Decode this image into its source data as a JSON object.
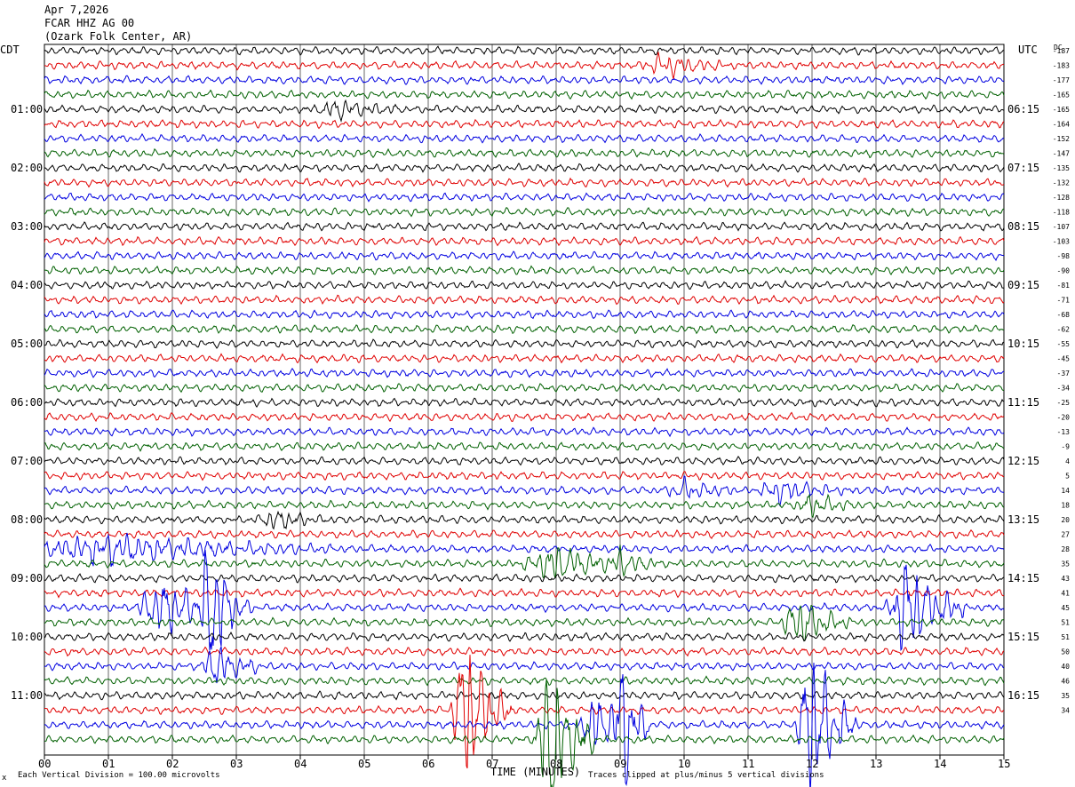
{
  "header": {
    "date": "Apr 7,2026",
    "station": "FCAR HHZ AG 00",
    "location": "(Ozark Folk Center, AR)"
  },
  "left_axis_title": "CDT",
  "right_axis_title": "UTC",
  "dc_title": "DC",
  "footer": {
    "xlabel": "TIME (MINUTES)",
    "scale_note": "Each Vertical Division =  100.00 microvolts",
    "clip_note": "Traces clipped at plus/minus 5 vertical divisions",
    "corner_mark": "x"
  },
  "colors": {
    "trace_cycle": [
      "#000000",
      "#e00000",
      "#0000e0",
      "#006000"
    ],
    "grid": "#000000"
  },
  "chart_data": {
    "type": "line",
    "title": "FCAR HHZ AG 00",
    "xlabel": "TIME (MINUTES)",
    "x_ticks": [
      "00",
      "01",
      "02",
      "03",
      "04",
      "05",
      "06",
      "07",
      "08",
      "09",
      "10",
      "11",
      "12",
      "13",
      "14",
      "15"
    ],
    "xlim": [
      0,
      15
    ],
    "rows": 48,
    "minutes_per_row": 15,
    "left_hour_labels": [
      {
        "row": 4,
        "label": "01:00"
      },
      {
        "row": 8,
        "label": "02:00"
      },
      {
        "row": 12,
        "label": "03:00"
      },
      {
        "row": 16,
        "label": "04:00"
      },
      {
        "row": 20,
        "label": "05:00"
      },
      {
        "row": 24,
        "label": "06:00"
      },
      {
        "row": 28,
        "label": "07:00"
      },
      {
        "row": 32,
        "label": "08:00"
      },
      {
        "row": 36,
        "label": "09:00"
      },
      {
        "row": 40,
        "label": "10:00"
      },
      {
        "row": 44,
        "label": "11:00"
      }
    ],
    "right_hour_labels": [
      {
        "row": 4,
        "label": "06:15"
      },
      {
        "row": 8,
        "label": "07:15"
      },
      {
        "row": 12,
        "label": "08:15"
      },
      {
        "row": 16,
        "label": "09:15"
      },
      {
        "row": 20,
        "label": "10:15"
      },
      {
        "row": 24,
        "label": "11:15"
      },
      {
        "row": 28,
        "label": "12:15"
      },
      {
        "row": 32,
        "label": "13:15"
      },
      {
        "row": 36,
        "label": "14:15"
      },
      {
        "row": 40,
        "label": "15:15"
      },
      {
        "row": 44,
        "label": "16:15"
      }
    ],
    "dc_offsets": [
      "-187",
      "-183",
      "-177",
      "-165",
      "-165",
      "-164",
      "-152",
      "-147",
      "-135",
      "-132",
      "-128",
      "-118",
      "-107",
      "-103",
      "-98",
      "-90",
      "-81",
      "-71",
      "-68",
      "-62",
      "-55",
      "-45",
      "-37",
      "-34",
      "-25",
      "-20",
      "-13",
      "-9",
      "4",
      "5",
      "14",
      "18",
      "20",
      "27",
      "28",
      "35",
      "43",
      "41",
      "45",
      "51",
      "51",
      "50",
      "40",
      "46",
      "35",
      "34",
      "",
      ""
    ],
    "events": [
      {
        "row": 1,
        "minute": 9.7,
        "amp": 0.6,
        "dur": 1.0
      },
      {
        "row": 4,
        "minute": 4.6,
        "amp": 0.5,
        "dur": 1.0
      },
      {
        "row": 30,
        "minute": 10.0,
        "amp": 0.5,
        "dur": 0.8
      },
      {
        "row": 30,
        "minute": 11.5,
        "amp": 0.6,
        "dur": 1.0
      },
      {
        "row": 31,
        "minute": 12.0,
        "amp": 0.5,
        "dur": 0.8
      },
      {
        "row": 32,
        "minute": 3.6,
        "amp": 0.5,
        "dur": 0.8
      },
      {
        "row": 34,
        "minute": 1.0,
        "amp": 0.8,
        "dur": 3.5
      },
      {
        "row": 35,
        "minute": 8.0,
        "amp": 1.0,
        "dur": 1.5
      },
      {
        "row": 35,
        "minute": 9.0,
        "amp": 0.9,
        "dur": 0.6
      },
      {
        "row": 38,
        "minute": 1.9,
        "amp": 1.6,
        "dur": 1.4
      },
      {
        "row": 38,
        "minute": 2.6,
        "amp": 5.0,
        "dur": 0.5
      },
      {
        "row": 38,
        "minute": 13.5,
        "amp": 3.0,
        "dur": 0.9
      },
      {
        "row": 39,
        "minute": 11.8,
        "amp": 1.5,
        "dur": 0.8
      },
      {
        "row": 42,
        "minute": 2.7,
        "amp": 1.2,
        "dur": 0.7
      },
      {
        "row": 45,
        "minute": 6.6,
        "amp": 5.0,
        "dur": 0.7
      },
      {
        "row": 46,
        "minute": 9.0,
        "amp": 5.0,
        "dur": 0.5
      },
      {
        "row": 46,
        "minute": 8.6,
        "amp": 2.0,
        "dur": 0.6
      },
      {
        "row": 46,
        "minute": 12.0,
        "amp": 5.0,
        "dur": 0.7
      },
      {
        "row": 47,
        "minute": 7.9,
        "amp": 5.0,
        "dur": 0.7
      }
    ]
  }
}
